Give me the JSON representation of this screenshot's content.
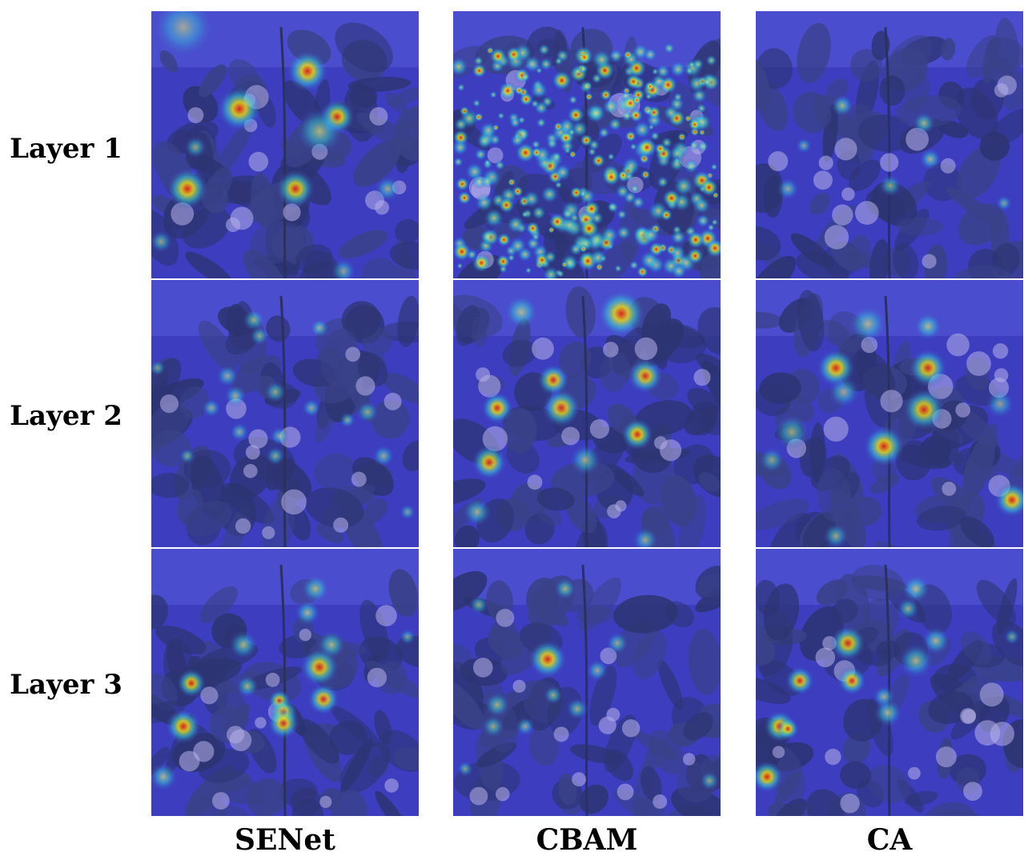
{
  "figure": {
    "rows": [
      {
        "label": "Layer 1"
      },
      {
        "label": "Layer 2"
      },
      {
        "label": "Layer 3"
      }
    ],
    "columns": [
      {
        "label": "SENet"
      },
      {
        "label": "CBAM"
      },
      {
        "label": "CA"
      }
    ]
  },
  "colors": {
    "heatmap_background": "#3d3fbf",
    "leaf_dark": "#2c3468",
    "flower": "#c9c3ef",
    "hot_red": "#ff1a00",
    "hot_yellow": "#ffee00",
    "hot_cyan": "#33e0e0"
  }
}
